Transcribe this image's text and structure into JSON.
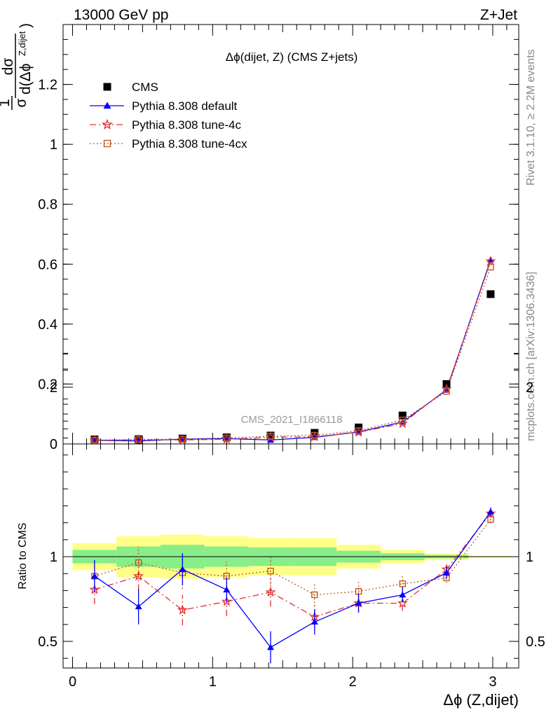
{
  "header": {
    "energy_label": "13000 GeV pp",
    "process_label": "Z+Jet",
    "side_label_top": "Rivet 3.1.10, ≥ 2.2M events",
    "side_label_bottom": "mcplots.cern.ch [arXiv:1306.3436]"
  },
  "chart_data": [
    {
      "type": "scatter",
      "title": "Δϕ(dijet, Z) (CMS Z+jets)",
      "watermark": "CMS_2021_I1866118",
      "ylabel_num": "dσ",
      "ylabel_den": "d(Δϕ",
      "ylabel_sup": "Z,dijet",
      "ylabel_prefactor_num": "1",
      "ylabel_prefactor_den": "σ",
      "xlabel": "Δϕ (Z,dijet)",
      "xlim": [
        -0.1,
        3.2
      ],
      "ylim": [
        0,
        1.4
      ],
      "yticks": [
        0,
        0.2,
        0.4,
        0.6,
        0.8,
        1,
        1.2
      ],
      "ytick_labels": [
        "0",
        "0.2",
        "0.4",
        "0.6",
        "0.8",
        "1",
        "1.2"
      ],
      "x": [
        0.157,
        0.471,
        0.785,
        1.1,
        1.414,
        1.728,
        2.042,
        2.356,
        2.67,
        2.985
      ],
      "legend_position": "top-left",
      "series": [
        {
          "name": "CMS",
          "color": "#000000",
          "marker": "square-filled",
          "values": [
            0.015,
            0.016,
            0.018,
            0.022,
            0.028,
            0.037,
            0.055,
            0.095,
            0.2,
            0.5
          ]
        },
        {
          "name": "Pythia 8.308 default",
          "color": "#0000ff",
          "marker": "triangle-filled",
          "line": "solid",
          "values": [
            0.012,
            0.01,
            0.016,
            0.018,
            0.013,
            0.022,
            0.04,
            0.073,
            0.18,
            0.615
          ]
        },
        {
          "name": "Pythia 8.308 tune-4c",
          "color": "#e03030",
          "marker": "star",
          "line": "dashdot",
          "values": [
            0.012,
            0.014,
            0.013,
            0.016,
            0.022,
            0.024,
            0.039,
            0.068,
            0.183,
            0.61
          ]
        },
        {
          "name": "Pythia 8.308 tune-4cx",
          "color": "#c05a20",
          "marker": "square-open",
          "line": "dotted",
          "values": [
            0.013,
            0.015,
            0.016,
            0.02,
            0.026,
            0.029,
            0.044,
            0.08,
            0.175,
            0.59
          ]
        }
      ]
    },
    {
      "type": "scatter",
      "ylabel": "Ratio to CMS",
      "xlim": [
        -0.1,
        3.2
      ],
      "ylim": [
        0.34,
        2.3
      ],
      "yticks": [
        0.5,
        1,
        2
      ],
      "ytick_labels": [
        "0.5",
        "1",
        "2"
      ],
      "xticks": [
        0,
        1,
        2,
        3
      ],
      "xtick_labels": [
        "0",
        "1",
        "2",
        "3"
      ],
      "bin_edges": [
        0,
        0.314,
        0.628,
        0.942,
        1.257,
        1.571,
        1.885,
        2.199,
        2.513,
        2.827,
        3.142
      ],
      "band_yellow": [
        [
          0.92,
          1.08
        ],
        [
          0.88,
          1.12
        ],
        [
          0.87,
          1.13
        ],
        [
          0.88,
          1.12
        ],
        [
          0.89,
          1.11
        ],
        [
          0.89,
          1.11
        ],
        [
          0.93,
          1.07
        ],
        [
          0.96,
          1.04
        ],
        [
          0.98,
          1.02
        ],
        [
          0.995,
          1.005
        ]
      ],
      "band_green": [
        [
          0.96,
          1.04
        ],
        [
          0.94,
          1.06
        ],
        [
          0.93,
          1.07
        ],
        [
          0.94,
          1.06
        ],
        [
          0.945,
          1.055
        ],
        [
          0.945,
          1.055
        ],
        [
          0.965,
          1.035
        ],
        [
          0.98,
          1.02
        ],
        [
          0.99,
          1.01
        ],
        [
          0.998,
          1.002
        ]
      ],
      "x": [
        0.157,
        0.471,
        0.785,
        1.1,
        1.414,
        1.728,
        2.042,
        2.356,
        2.67,
        2.985
      ],
      "series": [
        {
          "name": "Pythia 8.308 default",
          "color": "#0000ff",
          "marker": "triangle-filled",
          "line": "solid",
          "values": [
            0.885,
            0.705,
            0.925,
            0.805,
            0.465,
            0.615,
            0.725,
            0.775,
            0.905,
            1.265
          ],
          "errors": [
            0.095,
            0.105,
            0.095,
            0.075,
            0.095,
            0.075,
            0.055,
            0.045,
            0.035,
            0.025
          ]
        },
        {
          "name": "Pythia 8.308 tune-4c",
          "color": "#e03030",
          "marker": "star",
          "line": "dashdot",
          "values": [
            0.805,
            0.885,
            0.685,
            0.735,
            0.79,
            0.645,
            0.725,
            0.725,
            0.925,
            1.255
          ],
          "errors": [
            0.085,
            0.085,
            0.09,
            0.085,
            0.085,
            0.07,
            0.055,
            0.045,
            0.035,
            0.025
          ]
        },
        {
          "name": "Pythia 8.308 tune-4cx",
          "color": "#c05a20",
          "marker": "square-open",
          "line": "dotted",
          "values": [
            0.885,
            0.965,
            0.905,
            0.885,
            0.915,
            0.775,
            0.795,
            0.84,
            0.875,
            1.22
          ],
          "errors": [
            0.095,
            0.095,
            0.095,
            0.085,
            0.09,
            0.07,
            0.055,
            0.045,
            0.03,
            0.025
          ]
        }
      ]
    }
  ]
}
